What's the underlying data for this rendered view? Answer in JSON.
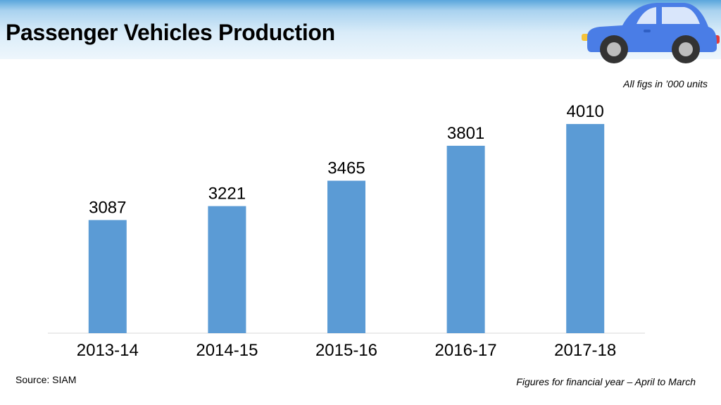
{
  "title": "Passenger Vehicles Production",
  "units_note": "All figs in ’000 units",
  "source": "Source: SIAM",
  "footnote": "Figures for financial year – April to March",
  "colors": {
    "bar": "#5b9bd5",
    "car_body": "#4a7de6",
    "car_window": "#d9e6fb"
  },
  "icons": {
    "car": "car-icon"
  },
  "chart_data": {
    "type": "bar",
    "title": "",
    "xlabel": "",
    "ylabel": "",
    "categories": [
      "2013-14",
      "2014-15",
      "2015-16",
      "2016-17",
      "2017-18"
    ],
    "values": [
      3087,
      3221,
      3465,
      3801,
      4010
    ],
    "ylim": [
      2000,
      4200
    ],
    "grid": false,
    "legend": "none",
    "data_labels": true
  }
}
